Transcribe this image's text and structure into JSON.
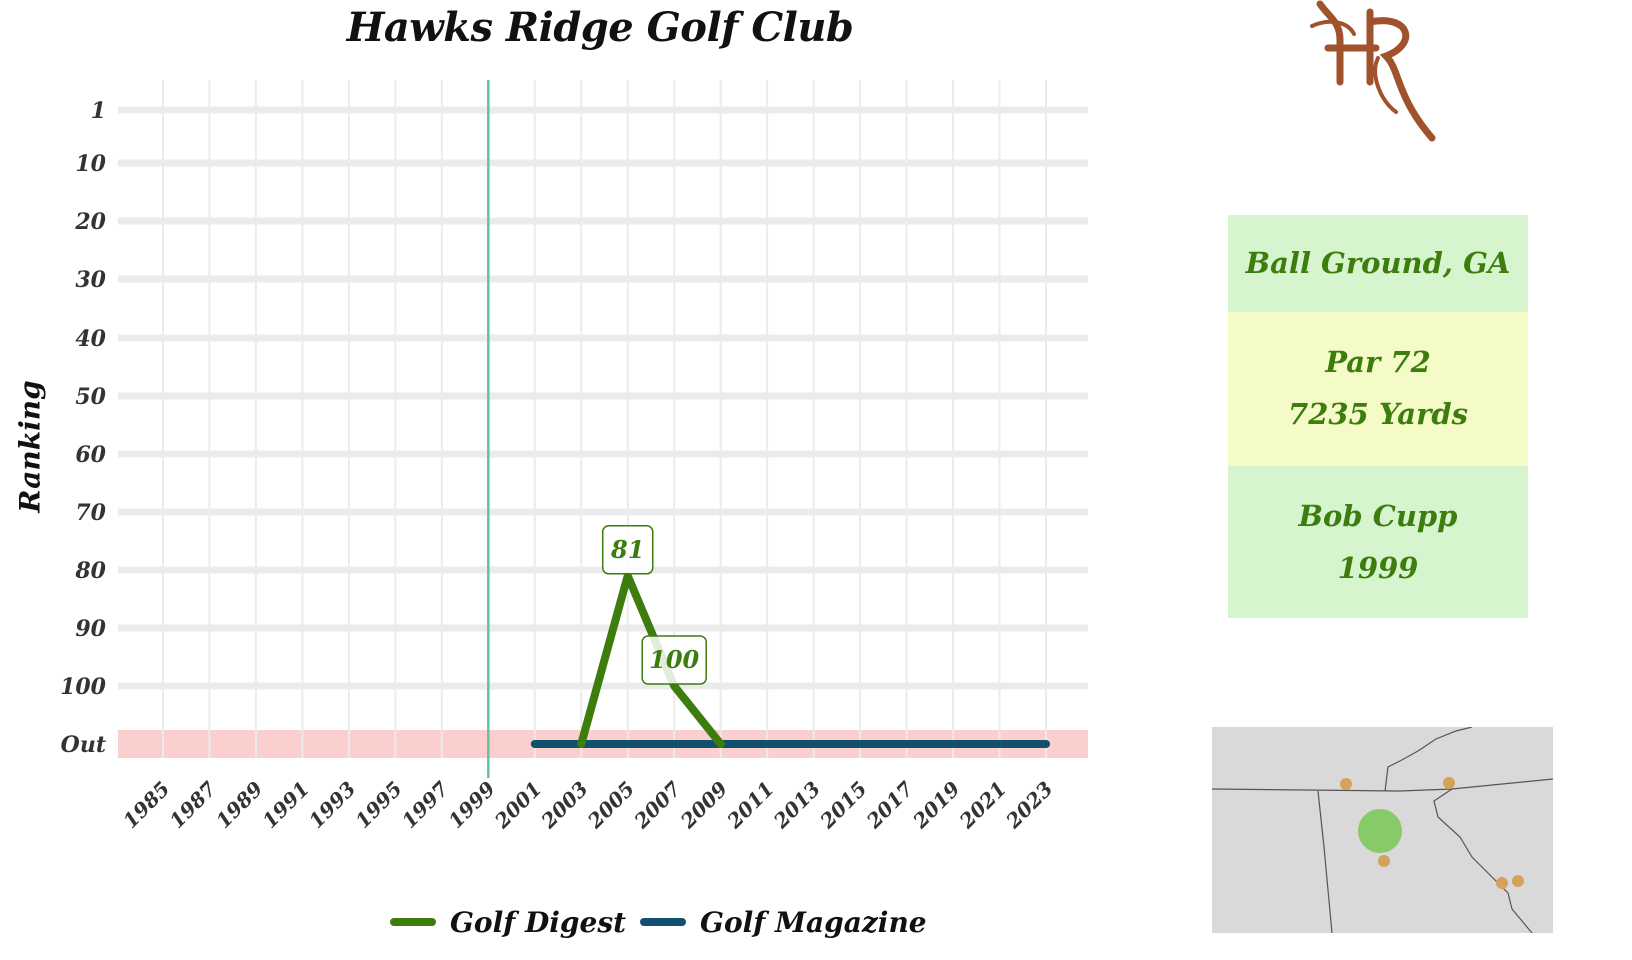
{
  "title": "Hawks Ridge Golf Club",
  "colors": {
    "golf_digest": "#3c7d0e",
    "golf_magazine": "#134f6e",
    "out_band": "#fbcfcd",
    "grid": "#ebebeb",
    "opened_line": "#66c29a",
    "info_text": "#3c7d0e",
    "logo": "#a0522d",
    "map_dot_main": "#7cc95b",
    "map_dot_other": "#d4a259"
  },
  "logo": {
    "text": "HR",
    "icon": "hr-monogram-logo"
  },
  "info": {
    "location": "Ball Ground, GA",
    "par": "Par 72",
    "yards": "7235 Yards",
    "architect": "Bob Cupp",
    "year": "1999"
  },
  "chart_data": {
    "type": "line",
    "title": "Hawks Ridge Golf Club",
    "xlabel": "",
    "ylabel": "Ranking",
    "x_ticks": [
      1985,
      1987,
      1989,
      1991,
      1993,
      1995,
      1997,
      1999,
      2001,
      2003,
      2005,
      2007,
      2009,
      2011,
      2013,
      2015,
      2017,
      2019,
      2021,
      2023
    ],
    "xlim": [
      1985,
      2023
    ],
    "y_tick_values": [
      1,
      10,
      20,
      30,
      40,
      50,
      60,
      70,
      80,
      90,
      100,
      "Out"
    ],
    "y_tick_labels": [
      "1",
      "10",
      "20",
      "30",
      "40",
      "50",
      "60",
      "70",
      "80",
      "90",
      "100",
      "Out"
    ],
    "y_reversed": true,
    "out_band_label": "Out",
    "opened_year": 1999,
    "grid": true,
    "legend_position": "bottom",
    "series": [
      {
        "name": "Golf Digest",
        "color": "#3c7d0e",
        "points": [
          {
            "x": 2003,
            "y": "Out"
          },
          {
            "x": 2005,
            "y": 81
          },
          {
            "x": 2007,
            "y": 100
          },
          {
            "x": 2009,
            "y": "Out"
          }
        ],
        "labels": [
          {
            "x": 2005,
            "y": 81,
            "text": "81"
          },
          {
            "x": 2007,
            "y": 100,
            "text": "100"
          }
        ]
      },
      {
        "name": "Golf Magazine",
        "color": "#134f6e",
        "points": [
          {
            "x": 2001,
            "y": "Out"
          },
          {
            "x": 2023,
            "y": "Out"
          }
        ]
      }
    ]
  },
  "map": {
    "icon": "course-location-map",
    "main_dot": "course-location",
    "other_dots": [
      "nearby-course",
      "nearby-course",
      "nearby-course",
      "nearby-course",
      "nearby-course"
    ]
  }
}
